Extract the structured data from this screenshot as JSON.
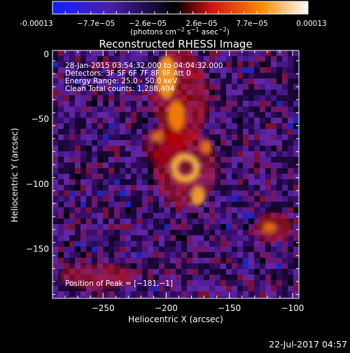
{
  "colorbar": {
    "ticks": [
      "-0.00013",
      "−7.7e−05",
      "−2.6e−05",
      "2.6e−05",
      "7.7e−05",
      "0.00013"
    ],
    "unit_main": "(photons cm",
    "unit_exp1": "−2",
    "unit_s": " s",
    "unit_exp2": "−1",
    "unit_asec": " asec",
    "unit_exp3": "−2",
    "unit_close": ")",
    "range": [
      -0.00013,
      0.00013
    ],
    "colors": [
      "#1020ff",
      "#4a1fb0",
      "#000000",
      "#d01010",
      "#ff8a00",
      "#ffffff"
    ]
  },
  "overlay": {
    "line1": "28‑Jan‑2015 03:54:32.000 to 04:04:32.000",
    "line2": "Detectors: 3F 5F 6F 7F 8F 9F  Att 0",
    "line3": "Energy Range: 25.0 ‑ 50.0 keV",
    "line4": "Clean      Total counts: 1,288,404",
    "peak": "Position of Peak = [−181,−1]"
  },
  "footer": {
    "date": "22‑Jul‑2017 04:57"
  },
  "chart_data": {
    "type": "heatmap",
    "title": "Reconstructed RHESSI Image",
    "xlabel": "Heliocentric X (arcsec)",
    "ylabel": "Heliocentric Y (arcsec)",
    "xlim": [
      -290,
      -95
    ],
    "ylim": [
      -188,
      3
    ],
    "xticks": [
      -250,
      -200,
      -150,
      -100
    ],
    "yticks": [
      0,
      -50,
      -100,
      -150
    ],
    "xtick_labels": [
      "−250",
      "−200",
      "−150",
      "−100"
    ],
    "ytick_labels": [
      "0",
      "−50",
      "−100",
      "−150"
    ],
    "peak_position": [
      -181,
      -1
    ],
    "colorbar_range": [
      -0.00013,
      0.00013
    ]
  }
}
